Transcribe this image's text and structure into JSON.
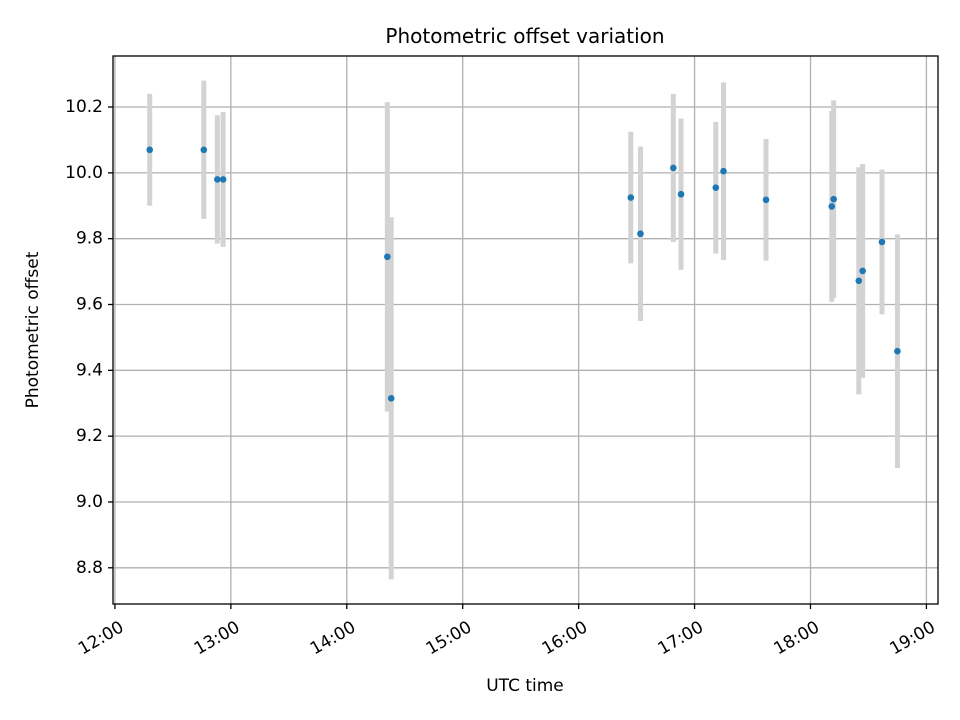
{
  "chart_data": {
    "type": "scatter",
    "title": "Photometric offset variation",
    "xlabel": "UTC time",
    "ylabel": "Photometric offset",
    "xlim": [
      "11:59",
      "19:06"
    ],
    "ylim": [
      8.69,
      10.355
    ],
    "xticks": [
      "12:00",
      "13:00",
      "14:00",
      "15:00",
      "16:00",
      "17:00",
      "18:00",
      "19:00"
    ],
    "yticks": [
      8.8,
      9.0,
      9.2,
      9.4,
      9.6,
      9.8,
      10.0,
      10.2
    ],
    "grid": true,
    "colors": {
      "point": "#1f77b4",
      "errorbar": "#d3d3d3",
      "grid": "#b0b0b0",
      "axes": "#000000"
    },
    "points": [
      {
        "x": "12:18",
        "y": 10.07,
        "err": 0.17
      },
      {
        "x": "12:46",
        "y": 10.07,
        "err": 0.21
      },
      {
        "x": "12:53",
        "y": 9.98,
        "err": 0.195
      },
      {
        "x": "12:56",
        "y": 9.98,
        "err": 0.205
      },
      {
        "x": "14:21",
        "y": 9.745,
        "err": 0.47
      },
      {
        "x": "14:23",
        "y": 9.315,
        "err": 0.55
      },
      {
        "x": "16:27",
        "y": 9.925,
        "err": 0.2
      },
      {
        "x": "16:32",
        "y": 9.815,
        "err": 0.265
      },
      {
        "x": "16:49",
        "y": 10.015,
        "err": 0.225
      },
      {
        "x": "16:53",
        "y": 9.935,
        "err": 0.23
      },
      {
        "x": "17:11",
        "y": 9.955,
        "err": 0.2
      },
      {
        "x": "17:15",
        "y": 10.005,
        "err": 0.27
      },
      {
        "x": "17:37",
        "y": 9.918,
        "err": 0.185
      },
      {
        "x": "18:11",
        "y": 9.898,
        "err": 0.29
      },
      {
        "x": "18:12",
        "y": 9.92,
        "err": 0.3
      },
      {
        "x": "18:25",
        "y": 9.672,
        "err": 0.345
      },
      {
        "x": "18:27",
        "y": 9.702,
        "err": 0.325
      },
      {
        "x": "18:37",
        "y": 9.79,
        "err": 0.22
      },
      {
        "x": "18:45",
        "y": 9.458,
        "err": 0.355
      }
    ]
  }
}
